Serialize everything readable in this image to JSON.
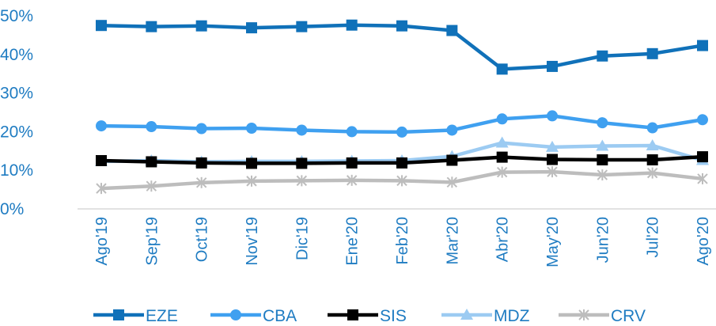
{
  "chart_data": {
    "type": "line",
    "title": "",
    "xlabel": "",
    "ylabel": "",
    "ylim": [
      0,
      50
    ],
    "yticks": [
      "0%",
      "10%",
      "20%",
      "30%",
      "40%",
      "50%"
    ],
    "categories": [
      "Ago'19",
      "Sep'19",
      "Oct'19",
      "Nov'19",
      "Dic'19",
      "Ene'20",
      "Feb'20",
      "Mar'20",
      "Abr'20",
      "May'20",
      "Jun'20",
      "Jul'20",
      "Ago'20"
    ],
    "grid": false,
    "legend_position": "bottom",
    "series": [
      {
        "name": "EZE",
        "color": "#1071b9",
        "marker": "square",
        "values": [
          47.5,
          47.2,
          47.4,
          46.9,
          47.2,
          47.6,
          47.4,
          46.2,
          36.2,
          36.9,
          39.6,
          40.2,
          42.3
        ]
      },
      {
        "name": "CBA",
        "color": "#3fa0f0",
        "marker": "circle",
        "values": [
          21.5,
          21.3,
          20.8,
          20.9,
          20.4,
          20.0,
          19.9,
          20.4,
          23.3,
          24.1,
          22.3,
          21.0,
          23.1
        ]
      },
      {
        "name": "SIS",
        "color": "#000000",
        "marker": "square",
        "values": [
          12.5,
          12.2,
          11.9,
          11.8,
          11.8,
          11.9,
          11.9,
          12.6,
          13.4,
          12.8,
          12.7,
          12.7,
          13.5
        ]
      },
      {
        "name": "MDZ",
        "color": "#9ccbf2",
        "marker": "triangle",
        "values": [
          12.3,
          12.5,
          12.2,
          12.3,
          12.3,
          12.4,
          12.5,
          13.6,
          17.1,
          16.0,
          16.3,
          16.4,
          12.6
        ]
      },
      {
        "name": "CRV",
        "color": "#bdbdbd",
        "marker": "cross",
        "values": [
          5.3,
          5.9,
          6.8,
          7.2,
          7.3,
          7.4,
          7.3,
          6.9,
          9.5,
          9.6,
          8.8,
          9.3,
          7.8
        ]
      }
    ]
  }
}
